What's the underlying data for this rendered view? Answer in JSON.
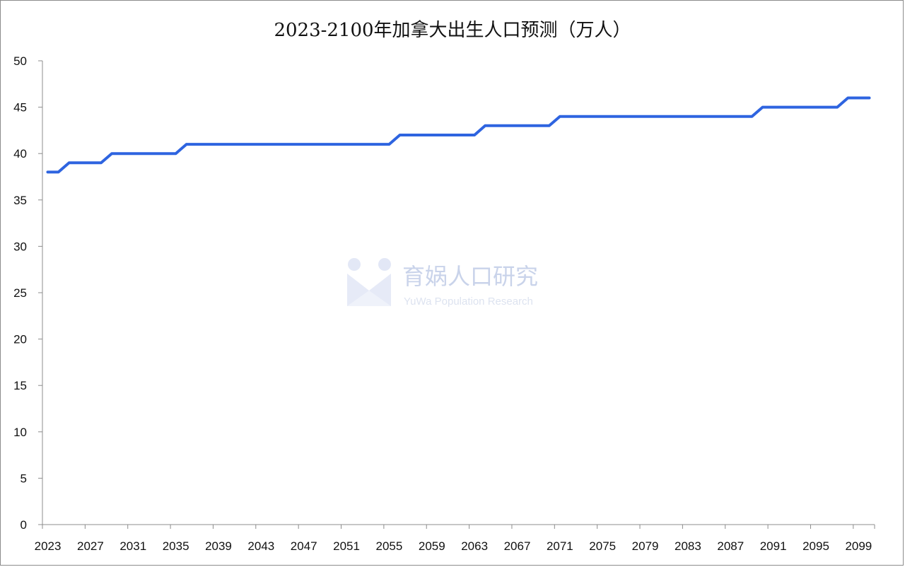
{
  "chart_data": {
    "type": "line",
    "title": "2023-2100年加拿大出生人口预测（万人）",
    "xlabel": "",
    "ylabel": "",
    "ylim": [
      0,
      50
    ],
    "yticks": [
      0,
      5,
      10,
      15,
      20,
      25,
      30,
      35,
      40,
      45,
      50
    ],
    "xticks": [
      "2023",
      "2027",
      "2031",
      "2035",
      "2039",
      "2043",
      "2047",
      "2051",
      "2055",
      "2059",
      "2063",
      "2067",
      "2071",
      "2075",
      "2079",
      "2083",
      "2087",
      "2091",
      "2095",
      "2099"
    ],
    "x_start": 2023,
    "x_end": 2100,
    "grid": false,
    "legend": "none",
    "line_color": "#2e64e0",
    "series": [
      {
        "values": [
          38,
          38,
          39,
          39,
          39,
          39,
          40,
          40,
          40,
          40,
          40,
          40,
          40,
          41,
          41,
          41,
          41,
          41,
          41,
          41,
          41,
          41,
          41,
          41,
          41,
          41,
          41,
          41,
          41,
          41,
          41,
          41,
          41,
          42,
          42,
          42,
          42,
          42,
          42,
          42,
          42,
          43,
          43,
          43,
          43,
          43,
          43,
          43,
          44,
          44,
          44,
          44,
          44,
          44,
          44,
          44,
          44,
          44,
          44,
          44,
          44,
          44,
          44,
          44,
          44,
          44,
          44,
          45,
          45,
          45,
          45,
          45,
          45,
          45,
          45,
          46,
          46,
          46
        ]
      }
    ]
  },
  "watermark": {
    "text": "育娲人口研究",
    "subtext": "YuWa Population Research"
  }
}
